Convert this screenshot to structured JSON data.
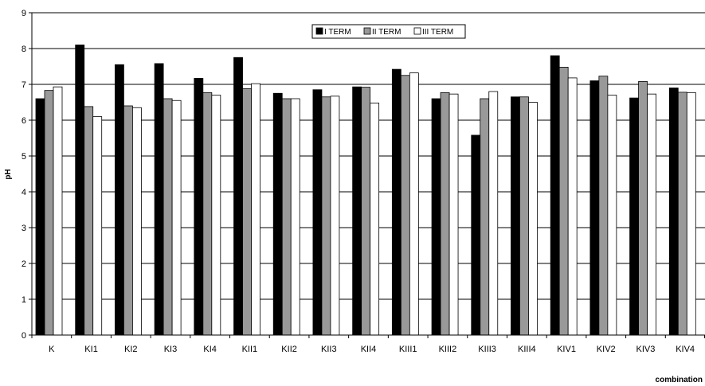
{
  "chart_data": {
    "type": "bar",
    "xlabel": "combination",
    "ylabel": "pH",
    "ylim": [
      0,
      9
    ],
    "yticks": [
      0,
      1,
      2,
      3,
      4,
      5,
      6,
      7,
      8,
      9
    ],
    "grid": true,
    "legend_position": "top-center",
    "categories": [
      "K",
      "KI1",
      "KI2",
      "KI3",
      "KI4",
      "KII1",
      "KII2",
      "KII3",
      "KII4",
      "KIII1",
      "KIII2",
      "KIII3",
      "KIII4",
      "KIV1",
      "KIV2",
      "KIV3",
      "KIV4"
    ],
    "series": [
      {
        "name": "I TERM",
        "color": "#000000",
        "values": [
          6.6,
          8.1,
          7.55,
          7.58,
          7.17,
          7.75,
          6.75,
          6.85,
          6.93,
          7.42,
          6.6,
          5.58,
          6.65,
          7.8,
          7.1,
          6.62,
          6.9
        ]
      },
      {
        "name": "II TERM",
        "color": "#999999",
        "values": [
          6.83,
          6.38,
          6.4,
          6.6,
          6.77,
          6.88,
          6.6,
          6.65,
          6.92,
          7.25,
          6.77,
          6.6,
          6.65,
          7.48,
          7.23,
          7.08,
          6.78
        ]
      },
      {
        "name": "III TERM",
        "color": "#ffffff",
        "values": [
          6.93,
          6.1,
          6.35,
          6.55,
          6.7,
          7.02,
          6.6,
          6.67,
          6.48,
          7.32,
          6.73,
          6.8,
          6.5,
          7.18,
          6.7,
          6.73,
          6.77
        ]
      }
    ]
  }
}
